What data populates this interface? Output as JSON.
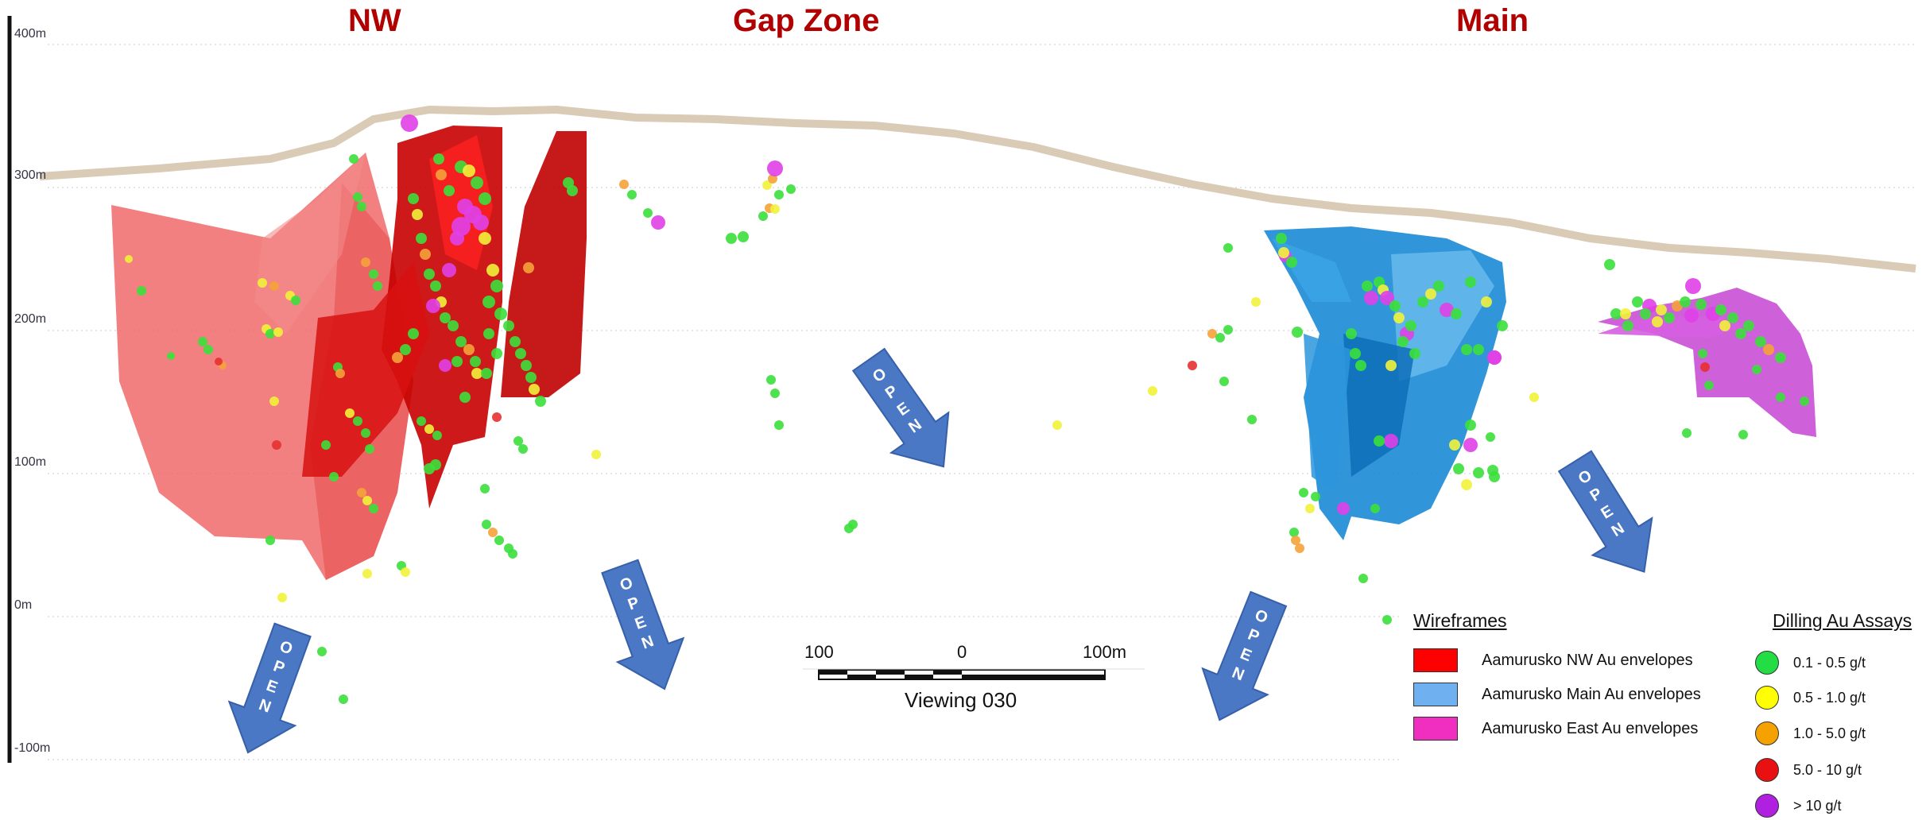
{
  "zones": [
    {
      "label": "NW"
    },
    {
      "label": "Gap Zone"
    },
    {
      "label": "Main"
    }
  ],
  "elevations": [
    "400m",
    "300m",
    "200m",
    "100m",
    "0m",
    "-100m"
  ],
  "open_arrow_text": "OPEN",
  "scale_bar": {
    "left_label": "100",
    "center_label": "0",
    "right_label": "100m",
    "viewing": "Viewing 030"
  },
  "legend": {
    "wireframes_title": "Wireframes",
    "wireframes": [
      {
        "label": "Aamurusko NW Au envelopes",
        "color": "#ff0000"
      },
      {
        "label": "Aamurusko Main Au envelopes",
        "color": "#6fb0f0"
      },
      {
        "label": "Aamurusko East Au envelopes",
        "color": "#f02fc0"
      }
    ],
    "assays_title": "Dilling Au Assays",
    "assays": [
      {
        "label": "0.1 - 0.5 g/t",
        "color": "#22dd44"
      },
      {
        "label": "0.5 - 1.0 g/t",
        "color": "#ffff00"
      },
      {
        "label": "1.0 - 5.0 g/t",
        "color": "#f5a200"
      },
      {
        "label": "5.0 - 10 g/t",
        "color": "#e81010"
      },
      {
        "label": "> 10 g/t",
        "color": "#b020e0"
      }
    ]
  }
}
